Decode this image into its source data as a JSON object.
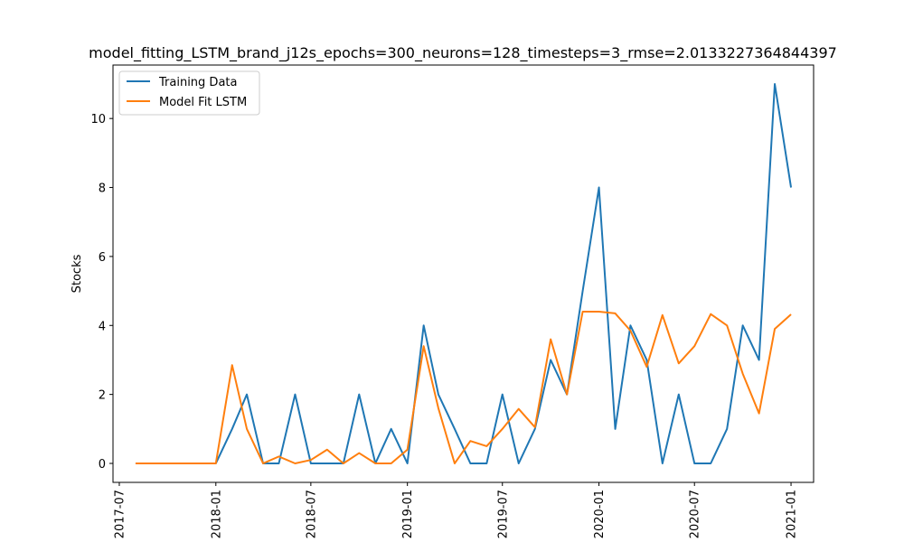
{
  "chart_data": {
    "type": "line",
    "title": "model_fitting_LSTM_brand_j12s_epochs=300_neurons=128_timesteps=3_rmse=2.0133227364844397",
    "xlabel": "",
    "ylabel": "Stocks",
    "x": [
      "2017-08",
      "2017-09",
      "2017-10",
      "2017-11",
      "2017-12",
      "2018-01",
      "2018-02",
      "2018-03",
      "2018-04",
      "2018-05",
      "2018-06",
      "2018-07",
      "2018-08",
      "2018-09",
      "2018-10",
      "2018-11",
      "2018-12",
      "2019-01",
      "2019-02",
      "2019-03",
      "2019-04",
      "2019-05",
      "2019-06",
      "2019-07",
      "2019-08",
      "2019-09",
      "2019-10",
      "2019-11",
      "2019-12",
      "2020-01",
      "2020-02",
      "2020-03",
      "2020-04",
      "2020-05",
      "2020-06",
      "2020-07",
      "2020-08",
      "2020-09",
      "2020-10",
      "2020-11",
      "2020-12",
      "2021-01"
    ],
    "series": [
      {
        "name": "Training Data",
        "color": "#1f77b4",
        "values": [
          0,
          0,
          0,
          0,
          0,
          0,
          1,
          2,
          0,
          0,
          2,
          0,
          0,
          0,
          2,
          0,
          1,
          0,
          4,
          2,
          1,
          0,
          0,
          2,
          0,
          1,
          3,
          2,
          5,
          8,
          1,
          4,
          3,
          0,
          2,
          0,
          0,
          1,
          4,
          3,
          11,
          8
        ]
      },
      {
        "name": "Model Fit LSTM",
        "color": "#ff7f0e",
        "values": [
          0,
          0,
          0,
          0,
          0,
          0,
          2.85,
          1.0,
          0,
          0.2,
          0,
          0.1,
          0.4,
          0,
          0.3,
          0,
          0,
          0.4,
          3.4,
          1.6,
          0,
          0.65,
          0.5,
          1.0,
          1.58,
          1.05,
          3.6,
          2.0,
          4.4,
          4.4,
          4.35,
          3.85,
          2.8,
          4.3,
          2.9,
          3.4,
          4.33,
          4.0,
          2.6,
          1.45,
          3.9,
          4.32
        ]
      }
    ],
    "xticks": [
      "2017-07",
      "2018-01",
      "2018-07",
      "2019-01",
      "2019-07",
      "2020-01",
      "2020-07",
      "2021-01"
    ],
    "yticks": [
      0,
      2,
      4,
      6,
      8,
      10
    ],
    "ylim": [
      -0.55,
      11.55
    ],
    "xlim": [
      "2017-06-19",
      "2021-02-13"
    ],
    "legend": "upper left",
    "grid": false
  }
}
